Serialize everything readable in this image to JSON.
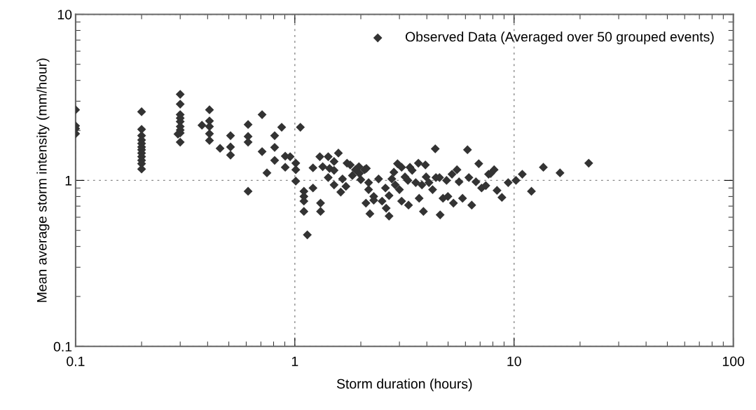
{
  "chart_data": {
    "type": "scatter",
    "xlabel": "Storm duration (hours)",
    "ylabel": "Mean average storm intensity (mm/hour)",
    "log": "xy",
    "xlim": [
      0.1,
      100
    ],
    "ylim": [
      0.1,
      10
    ],
    "xticks": [
      0.1,
      1,
      10,
      100
    ],
    "yticks": [
      0.1,
      1,
      10
    ],
    "grid": true,
    "legend": "top right",
    "marker": "diamond",
    "series": [
      {
        "name": "Observed Data (Averaged over 50 grouped events)",
        "color": "#333333",
        "x": [
          0.1,
          0.1,
          0.1,
          0.1,
          0.2,
          0.2,
          0.2,
          0.2,
          0.2,
          0.2,
          0.2,
          0.2,
          0.2,
          0.2,
          0.2,
          0.2,
          0.3,
          0.3,
          0.3,
          0.3,
          0.3,
          0.3,
          0.3,
          0.3,
          0.3,
          0.293,
          0.408,
          0.408,
          0.408,
          0.408,
          0.408,
          0.377,
          0.456,
          0.509,
          0.509,
          0.509,
          0.612,
          0.612,
          0.612,
          0.612,
          0.709,
          0.709,
          0.746,
          0.871,
          0.809,
          0.809,
          0.809,
          0.904,
          0.904,
          0.952,
          1.01,
          1.01,
          1.01,
          1.06,
          1.1,
          1.1,
          1.1,
          1.1,
          1.14,
          1.21,
          1.21,
          1.3,
          1.31,
          1.31,
          1.34,
          1.42,
          1.44,
          1.42,
          1.51,
          1.51,
          1.58,
          1.51,
          1.62,
          1.65,
          1.71,
          1.73,
          1.79,
          1.83,
          1.89,
          1.96,
          1.97,
          2.0,
          2.08,
          2.12,
          2.11,
          2.17,
          2.17,
          2.2,
          2.29,
          2.29,
          2.41,
          2.5,
          2.59,
          2.61,
          2.69,
          2.69,
          2.77,
          2.83,
          2.87,
          2.94,
          3.0,
          3.07,
          3.07,
          3.18,
          3.28,
          3.3,
          3.35,
          3.43,
          3.56,
          3.66,
          3.69,
          3.8,
          3.86,
          3.94,
          3.97,
          4.09,
          4.25,
          4.37,
          4.4,
          4.57,
          4.6,
          4.74,
          4.92,
          4.99,
          5.21,
          5.29,
          5.49,
          5.61,
          5.82,
          6.13,
          6.22,
          6.41,
          6.7,
          6.9,
          7.11,
          7.43,
          7.65,
          7.82,
          8.11,
          8.36,
          8.8,
          9.4,
          10.2,
          10.9,
          12.0,
          13.6,
          16.2,
          21.9
        ],
        "values": [
          2.66,
          2.13,
          2.05,
          1.91,
          2.59,
          2.03,
          1.86,
          1.75,
          1.67,
          1.59,
          1.53,
          1.46,
          1.39,
          1.32,
          1.26,
          1.17,
          3.3,
          2.88,
          2.49,
          2.37,
          2.26,
          2.11,
          2.01,
          1.93,
          1.7,
          1.9,
          2.66,
          2.28,
          2.11,
          1.91,
          1.74,
          2.15,
          1.56,
          1.86,
          1.59,
          1.42,
          2.17,
          1.84,
          1.7,
          0.86,
          2.49,
          1.49,
          1.11,
          2.09,
          1.86,
          1.58,
          1.32,
          1.4,
          1.2,
          1.39,
          1.27,
          1.16,
          0.99,
          2.09,
          0.86,
          0.8,
          0.75,
          0.65,
          0.47,
          1.19,
          0.9,
          1.39,
          0.73,
          0.65,
          1.21,
          1.39,
          1.18,
          1.04,
          1.3,
          1.15,
          1.46,
          0.94,
          0.85,
          1.02,
          0.92,
          1.27,
          1.24,
          1.07,
          1.16,
          1.21,
          1.1,
          1.01,
          1.16,
          1.18,
          0.73,
          0.97,
          0.88,
          0.63,
          0.8,
          0.76,
          1.02,
          0.75,
          0.9,
          0.68,
          0.81,
          0.61,
          1.02,
          1.12,
          0.94,
          1.26,
          0.88,
          1.2,
          0.75,
          1.05,
          1.0,
          0.71,
          1.2,
          1.15,
          0.97,
          1.27,
          0.78,
          0.94,
          0.65,
          1.24,
          1.05,
          0.97,
          0.88,
          1.55,
          1.04,
          1.04,
          0.62,
          0.78,
          1.0,
          0.8,
          1.09,
          0.73,
          1.16,
          0.98,
          0.78,
          1.53,
          1.04,
          0.71,
          0.98,
          1.26,
          0.9,
          0.93,
          1.09,
          1.1,
          1.16,
          0.87,
          0.79,
          0.97,
          1.0,
          1.09,
          0.86,
          1.2,
          1.11,
          1.27
        ]
      }
    ]
  }
}
